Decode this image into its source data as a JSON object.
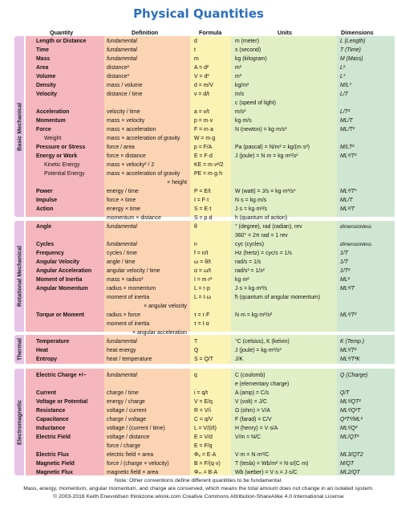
{
  "title": "Physical Quantities",
  "headers": {
    "quantity": "Quantity",
    "definition": "Definition",
    "formula": "Formula",
    "units": "Units",
    "dimensions": "Dimensions"
  },
  "sections": [
    "Basic Mechanical",
    "Rotational Mechanical",
    "Thermal",
    "Electromagnetic"
  ],
  "colors": {
    "title": "#2c6fbf",
    "quantity": "#f5b6bd",
    "definition": "#fbd4b4",
    "formula": "#fbf2b4",
    "units": "#e2efc6",
    "dimensions": "#cfe6d2",
    "section": "#e7c3e8"
  },
  "rows": [
    [
      "Length or Distance",
      "fundamental",
      "d",
      "m (meter)",
      "L (Length)"
    ],
    [
      "Time",
      "fundamental",
      "t",
      "s (second)",
      "T (Time)"
    ],
    [
      "Mass",
      "fundamental",
      "m",
      "kg (kilogram)",
      "M (Mass)"
    ],
    [
      "Area",
      "distance²",
      "A = d²",
      "m²",
      "L²"
    ],
    [
      "Volume",
      "distance³",
      "V = d³",
      "m³",
      "L³"
    ],
    [
      "Density",
      "mass / volume",
      "d = m/V",
      "kg/m³",
      "M/L³"
    ],
    [
      "Velocity",
      "distance / time",
      "v = d/t",
      "m/s",
      "L/T"
    ],
    [
      "",
      "",
      "",
      "c (speed of light)",
      ""
    ],
    [
      "Acceleration",
      "velocity / time",
      "a = v/t",
      "m/s²",
      "L/T²"
    ],
    [
      "Momentum",
      "mass × velocity",
      "p = m·v",
      "kg·m/s",
      "ML/T"
    ],
    [
      "Force",
      "mass × acceleration",
      "F = m·a",
      "N (newton) = kg·m/s²",
      "ML/T²"
    ],
    [
      "Weight",
      "mass × acceleration of gravity",
      "W = m·g",
      "",
      ""
    ],
    [
      "Pressure or Stress",
      "force / area",
      "p = F/A",
      "Pa (pascal) = N/m² = kg/(m·s²)",
      "M/LT²"
    ],
    [
      "Energy or Work",
      "force × distance",
      "E = F·d",
      "J (joule) = N·m = kg·m²/s²",
      "ML²/T²"
    ],
    [
      "Kinetic Energy",
      "mass × velocity² / 2",
      "KE = m·v²/2",
      "",
      ""
    ],
    [
      "Potential Energy",
      "mass × acceleration of gravity",
      "PE = m·g·h",
      "",
      ""
    ],
    [
      "",
      "× height",
      "",
      "",
      ""
    ],
    [
      "Power",
      "energy / time",
      "P = E/t",
      "W (watt) = J/s = kg·m²/s³",
      "ML²/T³"
    ],
    [
      "Impulse",
      "force × time",
      "I = F·t",
      "N·s = kg·m/s",
      "ML/T"
    ],
    [
      "Action",
      "energy × time",
      "S = E·t",
      "J·s = kg·m²/s",
      "ML²/T"
    ],
    [
      "",
      "momentum × distance",
      "S = p·d",
      "h (quantum of action)",
      ""
    ],
    [
      "Angle",
      "fundamental",
      "θ",
      "° (degree), rad (radian), rev",
      "dimensionless"
    ],
    [
      "",
      "",
      "",
      "360° = 2π rad = 1 rev",
      ""
    ],
    [
      "Cycles",
      "fundamental",
      "n",
      "cyc (cycles)",
      "dimensionless"
    ],
    [
      "Frequency",
      "cycles / time",
      "f = n/t",
      "Hz (hertz) = cyc/s = 1/s",
      "1/T"
    ],
    [
      "Angular Velocity",
      "angle / time",
      "ω = θ/t",
      "rad/s = 1/s",
      "1/T"
    ],
    [
      "Angular Acceleration",
      "angular velocity / time",
      "α = ω/t",
      "rad/s² = 1/s²",
      "1/T²"
    ],
    [
      "Moment of Inertia",
      "mass × radius²",
      "I = m·r²",
      "kg·m²",
      "ML²"
    ],
    [
      "Angular Momentum",
      "radius × momentum",
      "L = r·p",
      "J·s = kg·m²/s",
      "ML²/T"
    ],
    [
      "",
      "moment of inertia",
      "L = I·ω",
      "ħ (quantum of angular momentum)",
      ""
    ],
    [
      "",
      "× angular velocity",
      "",
      "",
      ""
    ],
    [
      "Torque or Moment",
      "radius × force",
      "τ = r·F",
      "N·m = kg·m²/s²",
      "ML²/T²"
    ],
    [
      "",
      "moment of inertia",
      "τ = I·α",
      "",
      ""
    ],
    [
      "",
      "× angular acceleration",
      "",
      "",
      ""
    ],
    [
      "Temperature",
      "fundamental",
      "T",
      "°C (celsius), K (kelvin)",
      "K (Temp.)"
    ],
    [
      "Heat",
      "heat energy",
      "Q",
      "J (joule) = kg·m²/s²",
      "ML²/T²"
    ],
    [
      "Entropy",
      "heat / temperature",
      "S = Q/T",
      "J/K",
      "ML²/T²K"
    ],
    [
      "Electric Charge +/−",
      "fundamental",
      "q",
      "C (coulomb)",
      "Q (Charge)"
    ],
    [
      "",
      "",
      "",
      "e (elementary charge)",
      ""
    ],
    [
      "Current",
      "charge / time",
      "i = q/t",
      "A (amp) = C/s",
      "Q/T"
    ],
    [
      "Voltage or Potential",
      "energy / charge",
      "V = E/q",
      "V (volt) = J/C",
      "ML²/QT²"
    ],
    [
      "Resistance",
      "voltage / current",
      "R = V/i",
      "Ω (ohm) = V/A",
      "ML²/Q²T"
    ],
    [
      "Capacitance",
      "charge / voltage",
      "C = q/V",
      "F (farad) = C/V",
      "Q²T²/ML²"
    ],
    [
      "Inductance",
      "voltage / (current / time)",
      "L = V/(i/t)",
      "H (henry) = V·s/A",
      "ML²/Q²"
    ],
    [
      "Electric Field",
      "voltage / distance",
      "E = V/d",
      "V/m = N/C",
      "ML/QT²"
    ],
    [
      "",
      "force / charge",
      "E = F/q",
      "",
      ""
    ],
    [
      "Electric Flux",
      "electric field × area",
      "Φₑ = E·A",
      "V·m = N·m²/C",
      "ML3/QT2"
    ],
    [
      "Magnetic Field",
      "force / (charge × velocity)",
      "B = F/(q·v)",
      "T (tesla) = Wb/m² = N·s/(C·m)",
      "M/QT"
    ],
    [
      "Magnetic Flux",
      "magnetic field × area",
      "Φₘ = B·A",
      "Wb (weber) = V·s = J·s/C",
      "ML2/QT"
    ]
  ],
  "footer": [
    "Note: Other conventions define different quantities to be fundamental.",
    "Mass, energy, momentum, angular momentum, and charge are conserved, which means the total amount does not change in an isolated system.",
    "© 2003-2016 Keith Enevoldsen   thinkzone.wlonk.com   Creative Commons Attribution-ShareAlike 4.0 International License"
  ]
}
